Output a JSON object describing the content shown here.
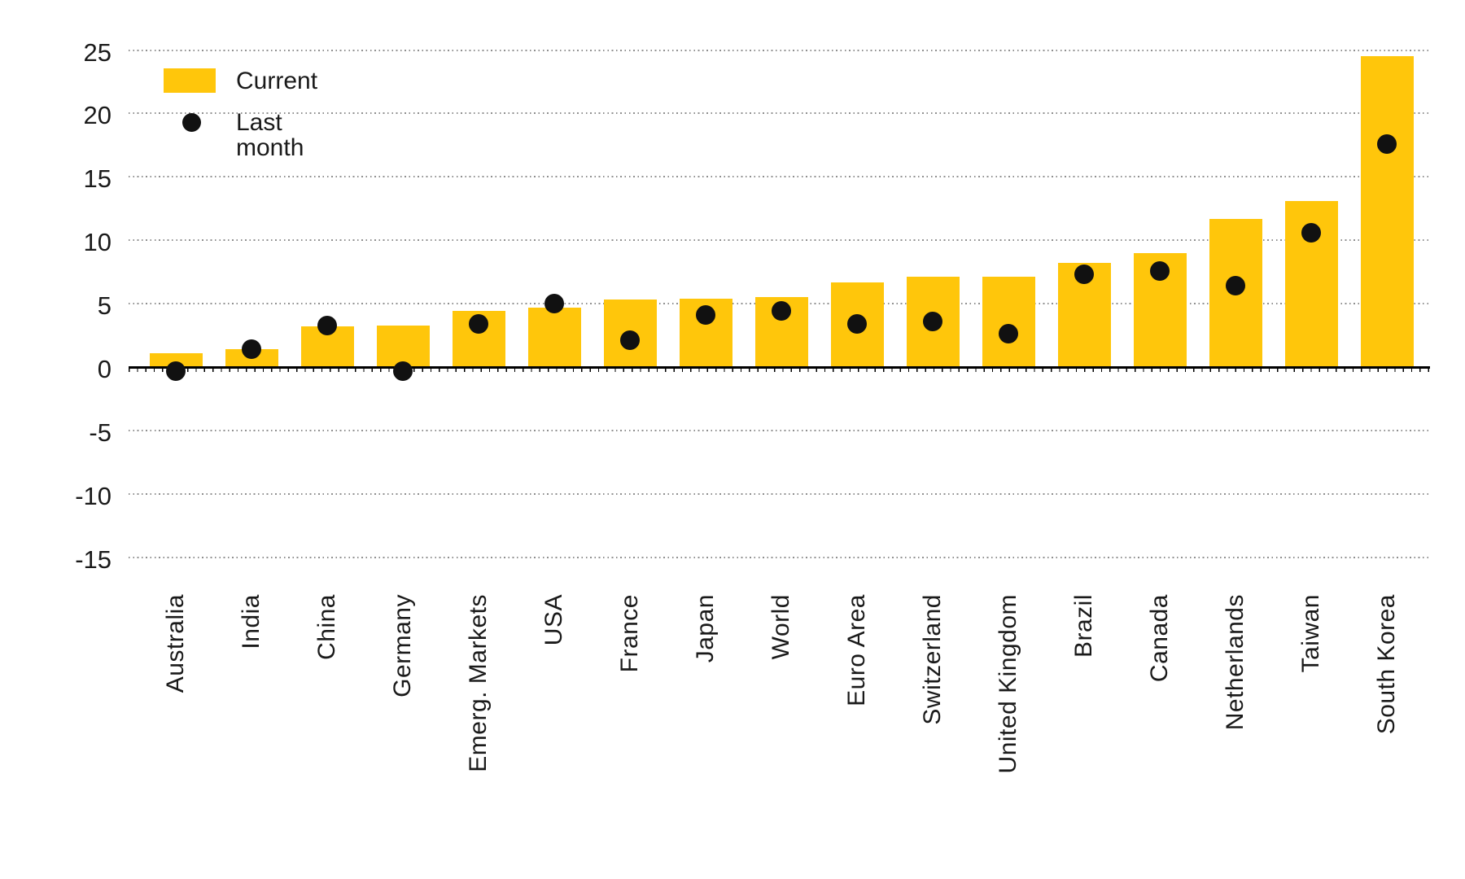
{
  "legend": {
    "current_label": "Current",
    "last_month_label": "Last month"
  },
  "colors": {
    "bar": "#FFC60B",
    "dot": "#111111",
    "grid": "#8F8F8F",
    "axis": "#000000",
    "text": "#1A1A1A"
  },
  "chart_data": {
    "type": "bar",
    "title": "",
    "xlabel": "",
    "ylabel": "",
    "categories": [
      "Australia",
      "India",
      "China",
      "Germany",
      "Emerg. Markets",
      "USA",
      "France",
      "Japan",
      "World",
      "Euro Area",
      "Switzerland",
      "United Kingdom",
      "Brazil",
      "Canada",
      "Netherlands",
      "Taiwan",
      "South Korea"
    ],
    "series": [
      {
        "name": "Current",
        "type": "bar",
        "values": [
          1.1,
          1.4,
          3.2,
          3.3,
          4.4,
          4.7,
          5.3,
          5.4,
          5.5,
          6.7,
          7.1,
          7.1,
          8.2,
          9.0,
          11.7,
          13.1,
          24.5
        ]
      },
      {
        "name": "Last month",
        "type": "scatter",
        "values": [
          -0.3,
          1.4,
          3.3,
          -0.3,
          3.4,
          5.0,
          2.1,
          4.1,
          4.4,
          3.4,
          3.6,
          2.6,
          7.3,
          7.6,
          6.4,
          10.6,
          17.6
        ]
      }
    ],
    "ylim": [
      -15,
      25
    ],
    "yticks": [
      25,
      20,
      15,
      10,
      5,
      0,
      -5,
      -10,
      -15
    ],
    "ytick_labels": [
      "25",
      "20",
      "15",
      "10",
      "5",
      "0",
      "-5",
      "-10",
      "-15"
    ],
    "grid": "horizontal dotted",
    "legend_position": "top-left",
    "x_tick_rotation_deg": 90
  }
}
